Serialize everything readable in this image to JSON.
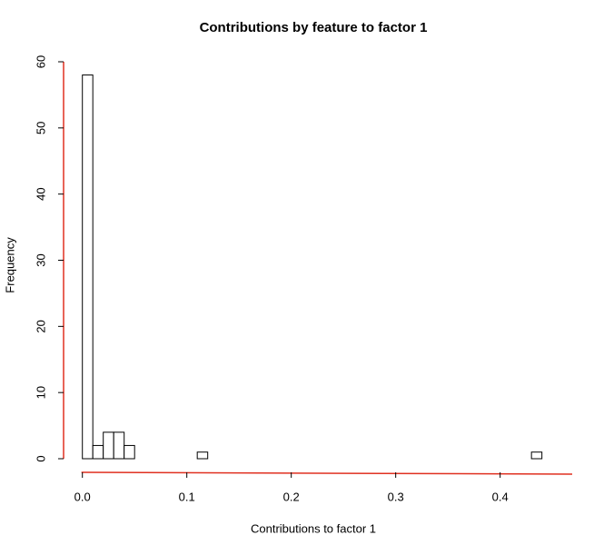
{
  "chart_data": {
    "type": "histogram",
    "title": "Contributions by feature to factor 1",
    "xlabel": "Contributions to factor 1",
    "ylabel": "Frequency",
    "bins": [
      0,
      0.01,
      0.02,
      0.03,
      0.04,
      0.05,
      0.06,
      0.07,
      0.08,
      0.09,
      0.1,
      0.11,
      0.12,
      0.13,
      0.14,
      0.15,
      0.16,
      0.17,
      0.18,
      0.19,
      0.2,
      0.21,
      0.22,
      0.23,
      0.24,
      0.25,
      0.26,
      0.27,
      0.28,
      0.29,
      0.3,
      0.31,
      0.32,
      0.33,
      0.34,
      0.35,
      0.36,
      0.37,
      0.38,
      0.39,
      0.4,
      0.41,
      0.42,
      0.43,
      0.44
    ],
    "values": [
      58,
      2,
      4,
      4,
      2,
      0,
      0,
      0,
      0,
      0,
      0,
      1,
      0,
      0,
      0,
      0,
      0,
      0,
      0,
      0,
      0,
      0,
      0,
      0,
      0,
      0,
      0,
      0,
      0,
      0,
      0,
      0,
      0,
      0,
      0,
      0,
      0,
      0,
      0,
      0,
      0,
      0,
      0,
      1
    ],
    "color": "#ffffff",
    "edgecolor": "#000000",
    "axis_color": "#e03020",
    "xlim": [
      -0.018,
      0.469
    ],
    "ylim": [
      0,
      60
    ],
    "xticks": [
      {
        "value": 0,
        "label": "0.0"
      },
      0.1,
      0.2,
      0.3,
      0.4
    ],
    "yticks": [
      0,
      10,
      20,
      30,
      40,
      50,
      60
    ]
  }
}
